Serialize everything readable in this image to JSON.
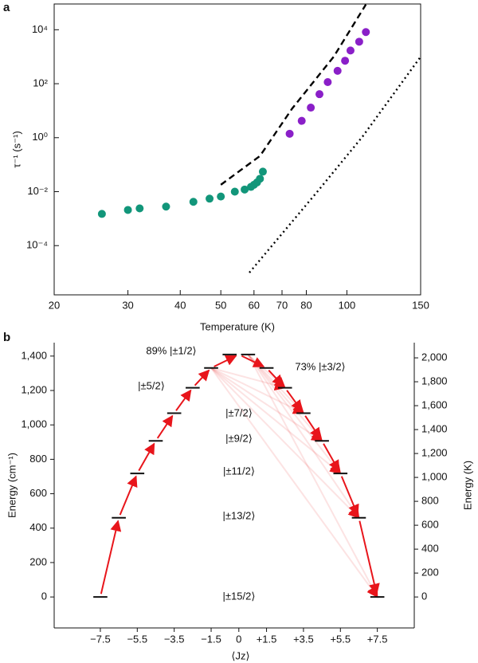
{
  "chart_data": [
    {
      "type": "scatter",
      "title": "a",
      "xlabel": "Temperature (K)",
      "ylabel": "τ⁻¹ (s⁻¹)",
      "log_x": true,
      "log_y": true,
      "xlim": [
        20,
        150
      ],
      "xticks": [
        20,
        30,
        40,
        50,
        60,
        70,
        80,
        100,
        150
      ],
      "ylim": [
        1.5e-06,
        90000
      ],
      "yticks": [
        {
          "value": 0.0001,
          "label": "10⁻⁴"
        },
        {
          "value": 0.01,
          "label": "10⁻²"
        },
        {
          "value": 1,
          "label": "10⁰"
        },
        {
          "value": 100,
          "label": "10²"
        },
        {
          "value": 10000,
          "label": "10⁴"
        }
      ],
      "series": [
        {
          "mode": "markers",
          "color": "#12967a",
          "x": [
            26,
            30,
            32,
            37,
            43,
            47,
            50,
            54,
            57,
            59,
            60,
            61,
            62,
            63
          ],
          "values": [
            0.0015,
            0.0021,
            0.0024,
            0.0028,
            0.0042,
            0.0055,
            0.0066,
            0.01,
            0.012,
            0.015,
            0.018,
            0.022,
            0.03,
            0.055
          ]
        },
        {
          "mode": "markers",
          "color": "#8a1fc8",
          "x": [
            73,
            78,
            82,
            86,
            90,
            95,
            99,
            102,
            107,
            111
          ],
          "values": [
            1.4,
            4.2,
            13,
            41,
            115,
            300,
            710,
            1700,
            3600,
            8200
          ]
        },
        {
          "mode": "line",
          "dash": "dashed",
          "color": "#000000",
          "x": [
            50,
            62,
            74,
            93,
            111
          ],
          "values": [
            0.018,
            0.21,
            12,
            1000,
            86000
          ]
        },
        {
          "mode": "line",
          "dash": "dotted",
          "color": "#000000",
          "x": [
            58.5,
            85,
            109,
            150
          ],
          "values": [
            1e-05,
            0.01,
            1.1,
            1000
          ]
        }
      ]
    },
    {
      "type": "levels",
      "title": "b",
      "xlabel": "⟨Jz⟩",
      "ylabel": "Energy (cm⁻¹)",
      "y2label": "Energy (K)",
      "xlim": [
        -10,
        9.5
      ],
      "xticks": [
        {
          "value": -7.5,
          "label": "−7.5"
        },
        {
          "value": -5.5,
          "label": "−5.5"
        },
        {
          "value": -3.5,
          "label": "−3.5"
        },
        {
          "value": -1.5,
          "label": "−1.5"
        },
        0,
        {
          "value": 1.5,
          "label": "+1.5"
        },
        {
          "value": 3.5,
          "label": "+3.5"
        },
        {
          "value": 5.5,
          "label": "+5.5"
        },
        {
          "value": 7.5,
          "label": "+7.5"
        }
      ],
      "ylim": [
        -180,
        1478
      ],
      "yticks": [
        0,
        200,
        400,
        600,
        800,
        {
          "value": 1000,
          "label": "1,000"
        },
        {
          "value": 1200,
          "label": "1,200"
        },
        {
          "value": 1400,
          "label": "1,400"
        }
      ],
      "y2lim": [
        -259,
        2127
      ],
      "y2ticks": [
        0,
        200,
        400,
        600,
        800,
        {
          "value": 1000,
          "label": "1,000"
        },
        {
          "value": 1200,
          "label": "1,200"
        },
        {
          "value": 1400,
          "label": "1,400"
        },
        {
          "value": 1600,
          "label": "1,600"
        },
        {
          "value": 1800,
          "label": "1,800"
        },
        {
          "value": 2000,
          "label": "2,000"
        }
      ],
      "color": "#e8151b",
      "x": [
        -7.5,
        -6.5,
        -5.5,
        -4.5,
        -3.5,
        -2.5,
        -1.5,
        -0.5,
        0.5,
        1.5,
        2.5,
        3.5,
        4.5,
        5.5,
        6.5,
        7.5
      ],
      "values": [
        0,
        460,
        718,
        907,
        1068,
        1216,
        1331,
        1409,
        1409,
        1331,
        1216,
        1068,
        907,
        718,
        460,
        0
      ],
      "annotations": [
        "89% |±1/2⟩",
        "73% |±3/2⟩",
        "|±5/2⟩",
        "|±7/2⟩",
        "|±9/2⟩",
        "|±11/2⟩",
        "|±13/2⟩",
        "|±15/2⟩"
      ]
    }
  ]
}
